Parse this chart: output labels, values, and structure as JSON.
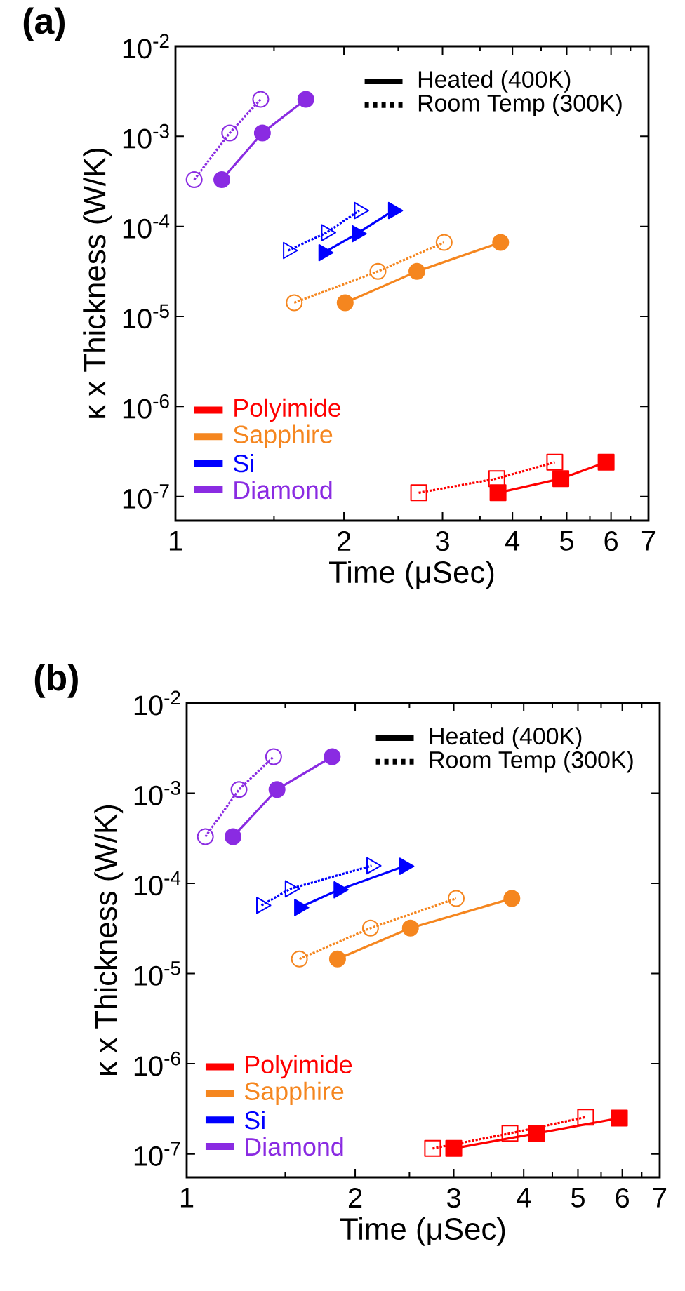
{
  "chart_data": [
    {
      "type": "line",
      "title": "(a)",
      "xlabel": "Time (μSec)",
      "ylabel": "κ x Thickness (W/K)",
      "log": "xy",
      "xlim": [
        1,
        7
      ],
      "ylim": [
        5.4e-08,
        0.01
      ],
      "xticks": [
        1,
        2,
        3,
        4,
        5,
        6,
        7
      ],
      "yticks": [
        {
          "value": 1e-07,
          "label": "10$^{-7}$"
        },
        {
          "value": 1e-06,
          "label": "10$^{-6}$"
        },
        {
          "value": 1e-05,
          "label": "10$^{-5}$"
        },
        {
          "value": 0.0001,
          "label": "10$^{-4}$"
        },
        {
          "value": 0.001,
          "label": "10$^{-3}$"
        },
        {
          "value": 0.01,
          "label": "10$^{-2}$"
        }
      ],
      "legend": "bottom left",
      "annotations": [
        "Heated (400K)",
        "Room Temp (300K)"
      ],
      "series": [
        {
          "name": "Polyimide",
          "color": "#ff0000",
          "marker": "square",
          "line_style": "solid",
          "x": [
            3.77,
            4.88,
            5.88
          ],
          "values": [
            1.1e-07,
            1.58e-07,
            2.4e-07
          ]
        },
        {
          "color": "#ff0000",
          "marker": "square",
          "line_style": "dotted",
          "x": [
            2.72,
            3.75,
            4.76
          ],
          "values": [
            1.1e-07,
            1.58e-07,
            2.4e-07
          ]
        },
        {
          "name": "Sapphire",
          "color": "#f5861f",
          "marker": "circle",
          "line_style": "solid",
          "x": [
            2.01,
            2.7,
            3.81
          ],
          "values": [
            1.42e-05,
            3.16e-05,
            6.65e-05
          ]
        },
        {
          "color": "#f5861f",
          "marker": "circle",
          "line_style": "dotted",
          "x": [
            1.63,
            2.3,
            3.02
          ],
          "values": [
            1.42e-05,
            3.16e-05,
            6.65e-05
          ]
        },
        {
          "name": "Si",
          "color": "#0000ff",
          "marker": "triangle",
          "line_style": "solid",
          "x": [
            1.84,
            2.11,
            2.45
          ],
          "values": [
            5.1e-05,
            8.3e-05,
            0.00015
          ]
        },
        {
          "color": "#0000ff",
          "marker": "triangle",
          "line_style": "dotted",
          "x": [
            1.59,
            1.86,
            2.13
          ],
          "values": [
            5.4e-05,
            8.5e-05,
            0.00015
          ]
        },
        {
          "name": "Diamond",
          "color": "#8a2be2",
          "marker": "circle",
          "line_style": "solid",
          "x": [
            1.21,
            1.43,
            1.71
          ],
          "values": [
            0.00033,
            0.00109,
            0.00258
          ]
        },
        {
          "color": "#8a2be2",
          "marker": "circle",
          "line_style": "dotted",
          "x": [
            1.08,
            1.25,
            1.42
          ],
          "values": [
            0.00033,
            0.00109,
            0.00258
          ]
        }
      ]
    },
    {
      "type": "line",
      "title": "(b)",
      "xlabel": "Time (μSec)",
      "ylabel": "κ x Thickness (W/K)",
      "log": "xy",
      "xlim": [
        1,
        7
      ],
      "ylim": [
        5.5e-08,
        0.01
      ],
      "xticks": [
        1,
        2,
        3,
        4,
        5,
        6,
        7
      ],
      "yticks": [
        {
          "value": 1e-07,
          "label": "10$^{-7}$"
        },
        {
          "value": 1e-06,
          "label": "10$^{-6}$"
        },
        {
          "value": 1e-05,
          "label": "10$^{-5}$"
        },
        {
          "value": 0.0001,
          "label": "10$^{-4}$"
        },
        {
          "value": 0.001,
          "label": "10$^{-3}$"
        },
        {
          "value": 0.01,
          "label": "10$^{-2}$"
        }
      ],
      "legend": "bottom left",
      "annotations": [
        "Heated (400K)",
        "Room Temp (300K)"
      ],
      "series": [
        {
          "name": "Polyimide",
          "color": "#ff0000",
          "marker": "square",
          "line_style": "solid",
          "x": [
            3.0,
            4.22,
            5.93
          ],
          "values": [
            1.15e-07,
            1.69e-07,
            2.5e-07
          ]
        },
        {
          "color": "#ff0000",
          "marker": "square",
          "line_style": "dotted",
          "x": [
            2.75,
            3.78,
            5.16
          ],
          "values": [
            1.15e-07,
            1.69e-07,
            2.56e-07
          ]
        },
        {
          "name": "Sapphire",
          "color": "#f5861f",
          "marker": "circle",
          "line_style": "solid",
          "x": [
            1.86,
            2.51,
            3.81
          ],
          "values": [
            1.45e-05,
            3.2e-05,
            6.8e-05
          ]
        },
        {
          "color": "#f5861f",
          "marker": "circle",
          "line_style": "dotted",
          "x": [
            1.59,
            2.13,
            3.03
          ],
          "values": [
            1.45e-05,
            3.2e-05,
            6.8e-05
          ]
        },
        {
          "name": "Si",
          "color": "#0000ff",
          "marker": "triangle",
          "line_style": "solid",
          "x": [
            1.59,
            1.87,
            2.45
          ],
          "values": [
            5.4e-05,
            8.5e-05,
            0.000155
          ]
        },
        {
          "color": "#0000ff",
          "marker": "triangle",
          "line_style": "dotted",
          "x": [
            1.36,
            1.53,
            2.14
          ],
          "values": [
            5.7e-05,
            8.7e-05,
            0.000157
          ]
        },
        {
          "name": "Diamond",
          "color": "#8a2be2",
          "marker": "circle",
          "line_style": "solid",
          "x": [
            1.21,
            1.45,
            1.82
          ],
          "values": [
            0.00033,
            0.0011,
            0.00254
          ]
        },
        {
          "color": "#8a2be2",
          "marker": "circle",
          "line_style": "dotted",
          "x": [
            1.08,
            1.24,
            1.43
          ],
          "values": [
            0.00033,
            0.0011,
            0.00254
          ]
        }
      ]
    }
  ]
}
